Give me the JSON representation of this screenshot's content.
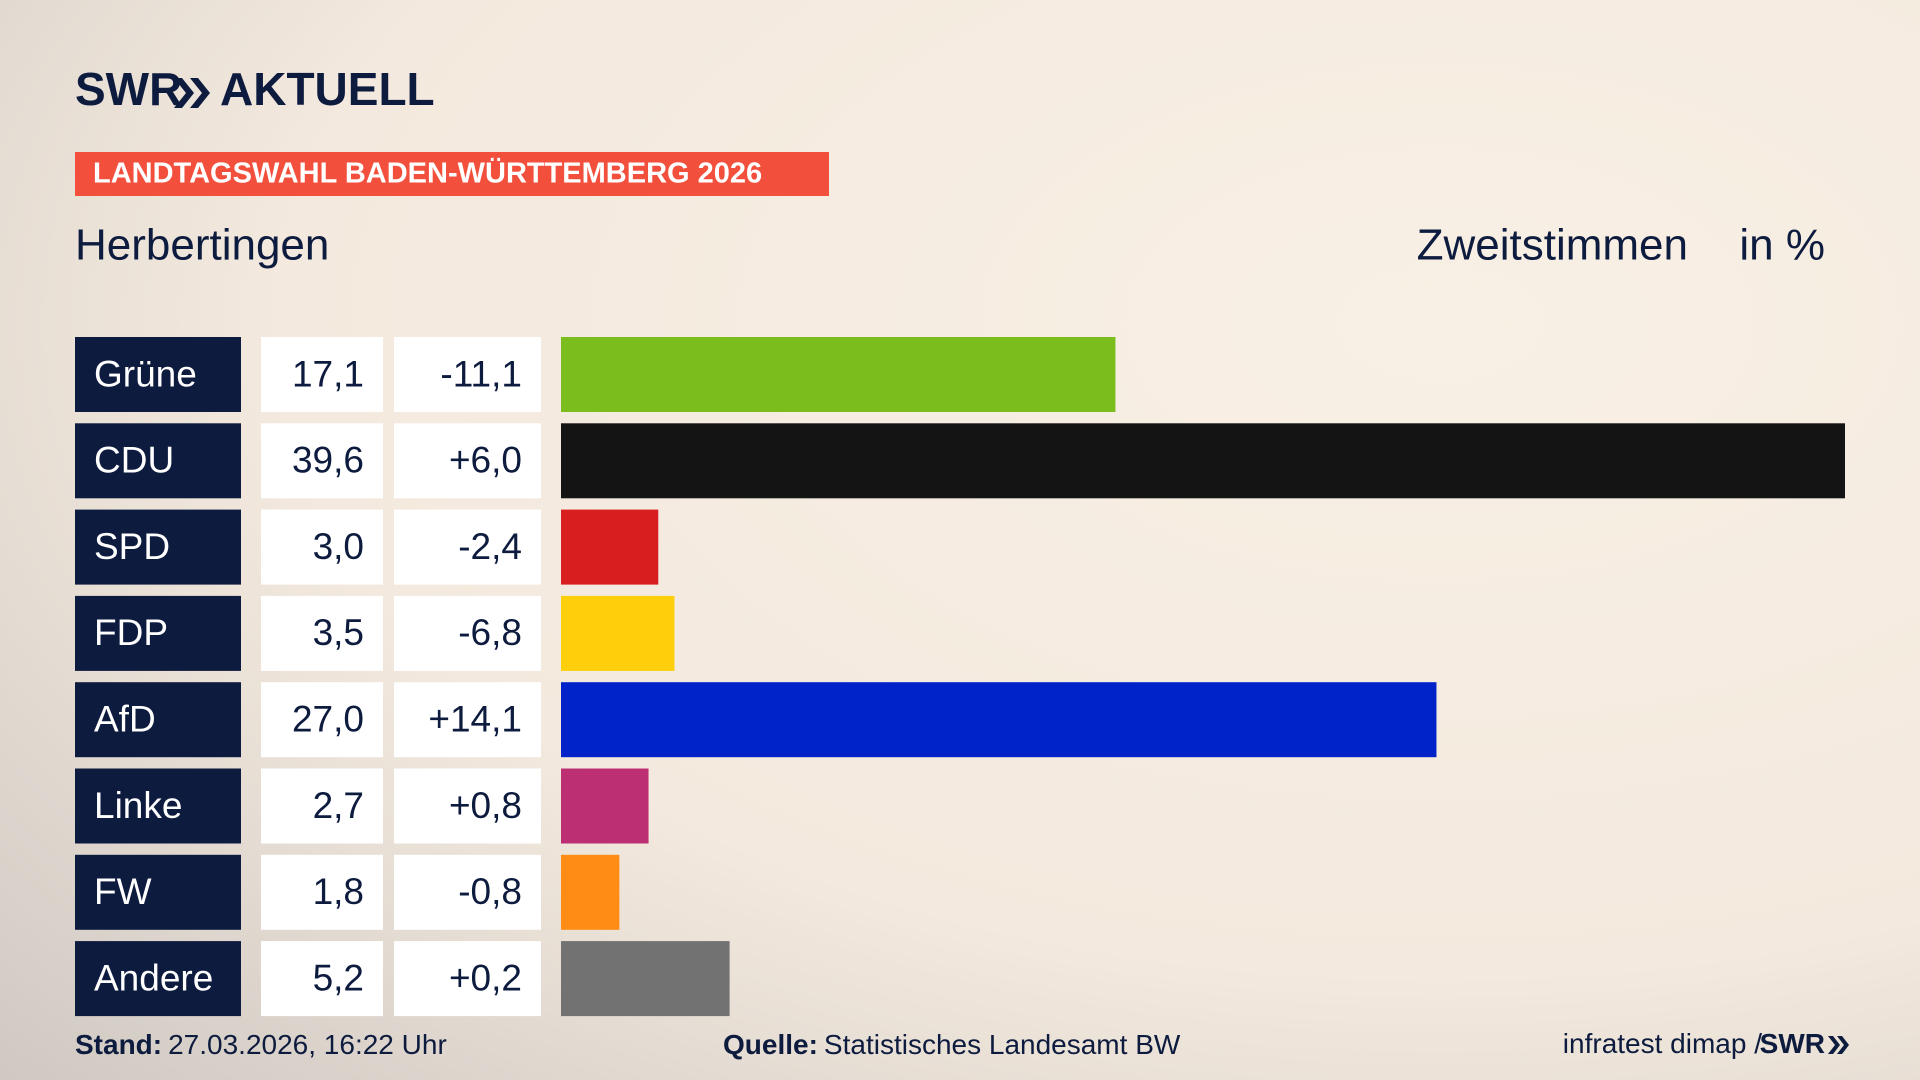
{
  "header": {
    "brand": "SWR",
    "brand_sub": "AKTUELL",
    "banner": "LANDTAGSWAHL BADEN-WÜRTTEMBERG 2026",
    "location": "Herbertingen",
    "vote_type": "Zweitstimmen",
    "unit": "in %"
  },
  "chart_data": {
    "type": "bar",
    "categories": [
      "Grüne",
      "CDU",
      "SPD",
      "FDP",
      "AfD",
      "Linke",
      "FW",
      "Andere"
    ],
    "values": [
      17.1,
      39.6,
      3.0,
      3.5,
      27.0,
      2.7,
      1.8,
      5.2
    ],
    "value_labels": [
      "17,1",
      "39,6",
      "3,0",
      "3,5",
      "27,0",
      "2,7",
      "1,8",
      "5,2"
    ],
    "changes": [
      -11.1,
      6.0,
      -2.4,
      -6.8,
      14.1,
      0.8,
      -0.8,
      0.2
    ],
    "change_labels": [
      "-11,1",
      "+6,0",
      "-2,4",
      "-6,8",
      "+14,1",
      "+0,8",
      "-0,8",
      "+0,2"
    ],
    "colors": [
      "#7cbd1e",
      "#141414",
      "#d81e1e",
      "#fecf0a",
      "#0022c9",
      "#bc2f72",
      "#ff8c14",
      "#727272"
    ]
  },
  "footer": {
    "stand_label": "Stand:",
    "stand": "27.03.2026, 16:22 Uhr",
    "source_label": "Quelle:",
    "source": "Statistisches Landesamt BW",
    "credit": "infratest dimap /",
    "credit_brand": "SWR"
  }
}
